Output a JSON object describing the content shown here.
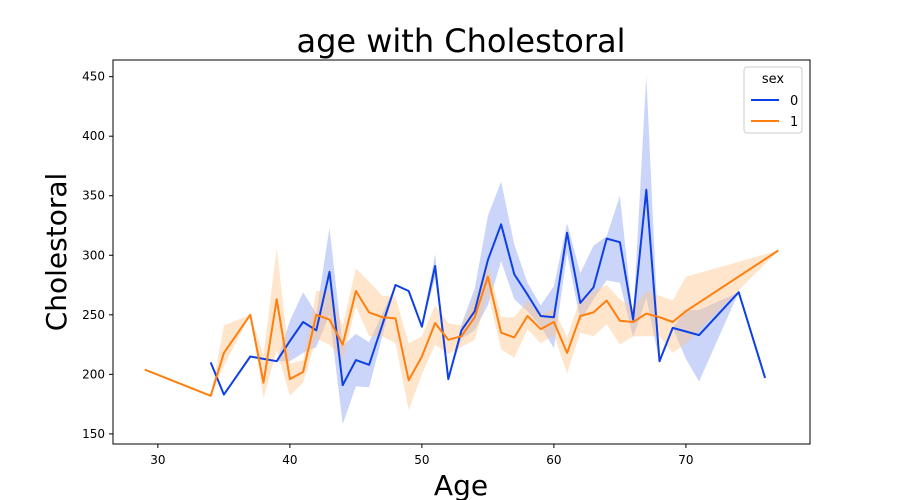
{
  "chart_data": {
    "type": "line",
    "title": "age with Cholestoral",
    "xlabel": "Age",
    "ylabel": "Cholestoral",
    "xlim": [
      26.6,
      79.4
    ],
    "ylim": [
      141.5,
      464
    ],
    "xticks": [
      30,
      40,
      50,
      60,
      70
    ],
    "yticks": [
      150,
      200,
      250,
      300,
      350,
      400,
      450
    ],
    "grid": false,
    "legend": {
      "title": "sex",
      "placement": "top-right"
    },
    "series": [
      {
        "name": "0",
        "color": "#0e40e6",
        "band_color": "#8aa2f2",
        "x": [
          34,
          35,
          37,
          38,
          39,
          40,
          41,
          42,
          43,
          44,
          45,
          46,
          48,
          49,
          50,
          51,
          52,
          53,
          54,
          55,
          56,
          57,
          58,
          59,
          60,
          61,
          62,
          63,
          64,
          65,
          66,
          67,
          68,
          69,
          70,
          71,
          74,
          76
        ],
        "y": [
          210,
          183,
          215,
          213,
          211,
          228,
          244,
          237,
          286,
          191,
          212,
          208,
          275,
          270,
          240,
          291,
          196,
          237,
          253,
          296,
          326,
          284,
          267,
          249,
          248,
          319,
          260,
          273,
          314,
          311,
          246,
          355,
          211,
          239,
          236,
          233,
          269,
          197
        ],
        "lower": [
          210,
          183,
          215,
          213,
          211,
          211,
          218,
          223,
          250,
          158,
          190,
          189,
          275,
          270,
          240,
          281,
          196,
          230,
          237,
          258,
          295,
          263,
          253,
          240,
          222,
          302,
          245,
          263,
          279,
          277,
          231,
          264,
          211,
          239,
          213,
          194,
          269,
          197
        ],
        "upper": [
          210,
          183,
          215,
          213,
          211,
          245,
          269,
          251,
          323,
          224,
          234,
          227,
          275,
          270,
          240,
          301,
          196,
          242,
          272,
          333,
          362,
          309,
          277,
          258,
          274,
          327,
          285,
          308,
          316,
          350,
          246,
          451,
          211,
          239,
          254,
          254,
          269,
          197
        ]
      },
      {
        "name": "1",
        "color": "#ff7f0e",
        "band_color": "#ffc58f",
        "x": [
          29,
          34,
          35,
          37,
          38,
          39,
          40,
          41,
          42,
          43,
          44,
          45,
          46,
          47,
          48,
          49,
          50,
          51,
          52,
          53,
          54,
          55,
          56,
          57,
          58,
          59,
          60,
          61,
          62,
          63,
          64,
          65,
          66,
          67,
          68,
          69,
          70,
          77
        ],
        "y": [
          204,
          182,
          218,
          250,
          193,
          263,
          196,
          202,
          250,
          246,
          225,
          270,
          252,
          248,
          247,
          195,
          215,
          243,
          229,
          232,
          248,
          282,
          235,
          231,
          249,
          238,
          244,
          218,
          249,
          252,
          262,
          245,
          244,
          251,
          248,
          244,
          253,
          304
        ],
        "lower": [
          204,
          182,
          207,
          250,
          180,
          220,
          182,
          193,
          230,
          225,
          212,
          257,
          232,
          232,
          226,
          170,
          200,
          225,
          217,
          223,
          229,
          268,
          221,
          214,
          238,
          226,
          233,
          201,
          235,
          232,
          242,
          225,
          232,
          232,
          232,
          218,
          226,
          304
        ],
        "upper": [
          204,
          182,
          241,
          250,
          216,
          306,
          209,
          212,
          270,
          270,
          241,
          289,
          278,
          266,
          265,
          226,
          232,
          258,
          243,
          241,
          264,
          293,
          248,
          248,
          262,
          250,
          255,
          231,
          264,
          270,
          275,
          263,
          256,
          270,
          266,
          262,
          282,
          304
        ]
      }
    ]
  }
}
